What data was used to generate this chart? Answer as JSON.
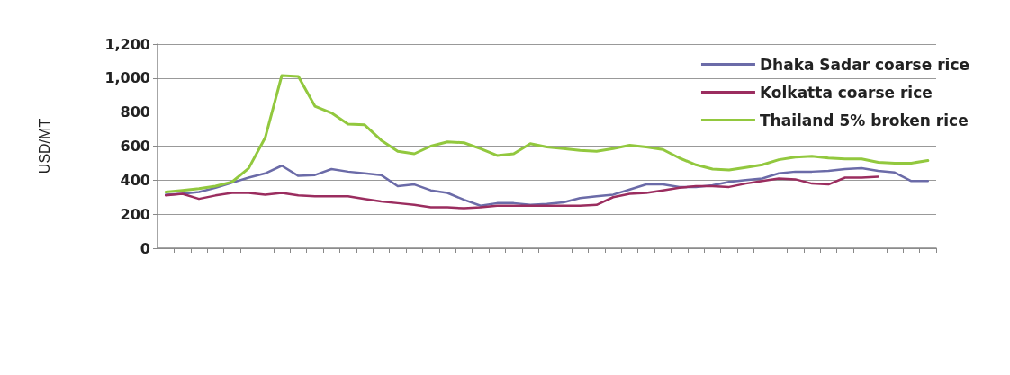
{
  "chart_data": {
    "type": "line",
    "ylabel": "USD/MT",
    "categories": [
      null,
      null,
      null,
      null,
      null,
      null,
      null,
      null,
      null,
      null,
      null,
      null,
      null,
      null,
      null,
      null,
      null,
      null,
      null,
      null,
      null,
      null,
      null,
      null,
      null,
      null,
      null,
      null,
      null,
      null,
      null,
      null,
      null,
      null,
      null,
      null,
      null,
      null,
      null,
      null,
      null,
      null,
      null,
      null,
      null,
      null,
      null
    ],
    "ylim": [
      0,
      1200
    ],
    "yticks": [
      0,
      {
        "value": 200,
        "label": "200"
      },
      {
        "value": 400,
        "label": "400"
      },
      {
        "value": 600,
        "label": "600"
      },
      {
        "value": 800,
        "label": "800"
      },
      {
        "value": 1000,
        "label": "1,000"
      },
      {
        "value": 1200,
        "label": "1,200"
      }
    ],
    "grid": "y",
    "legend": "top right",
    "marker": "none",
    "line_style": "solid",
    "series": [
      {
        "name": "Dhaka Sadar coarse rice",
        "color": "#6b6ba8",
        "values": [
          315,
          320,
          330,
          355,
          385,
          415,
          440,
          485,
          425,
          430,
          465,
          450,
          440,
          430,
          365,
          375,
          340,
          325,
          285,
          250,
          265,
          265,
          255,
          260,
          270,
          295,
          305,
          315,
          345,
          375,
          375,
          360,
          360,
          370,
          390,
          400,
          410,
          440,
          450,
          450,
          455,
          465,
          470,
          455,
          445,
          395,
          395
        ]
      },
      {
        "name": "Kolkatta coarse rice",
        "color": "#9b2d5f",
        "values": [
          310,
          320,
          290,
          310,
          325,
          325,
          315,
          325,
          310,
          305,
          305,
          305,
          290,
          275,
          265,
          255,
          240,
          240,
          235,
          240,
          250,
          250,
          250,
          250,
          250,
          250,
          255,
          300,
          320,
          325,
          340,
          355,
          365,
          365,
          360,
          380,
          395,
          410,
          405,
          380,
          375,
          415,
          415,
          420,
          null,
          null,
          null
        ]
      },
      {
        "name": "Thailand 5% broken rice",
        "color": "#92c83e",
        "values": [
          330,
          340,
          350,
          365,
          390,
          470,
          650,
          1015,
          1010,
          835,
          795,
          730,
          725,
          635,
          570,
          555,
          600,
          625,
          620,
          585,
          545,
          555,
          615,
          595,
          585,
          575,
          570,
          585,
          605,
          595,
          580,
          530,
          490,
          465,
          460,
          475,
          490,
          520,
          535,
          540,
          530,
          525,
          525,
          505,
          500,
          500,
          515
        ]
      }
    ]
  }
}
